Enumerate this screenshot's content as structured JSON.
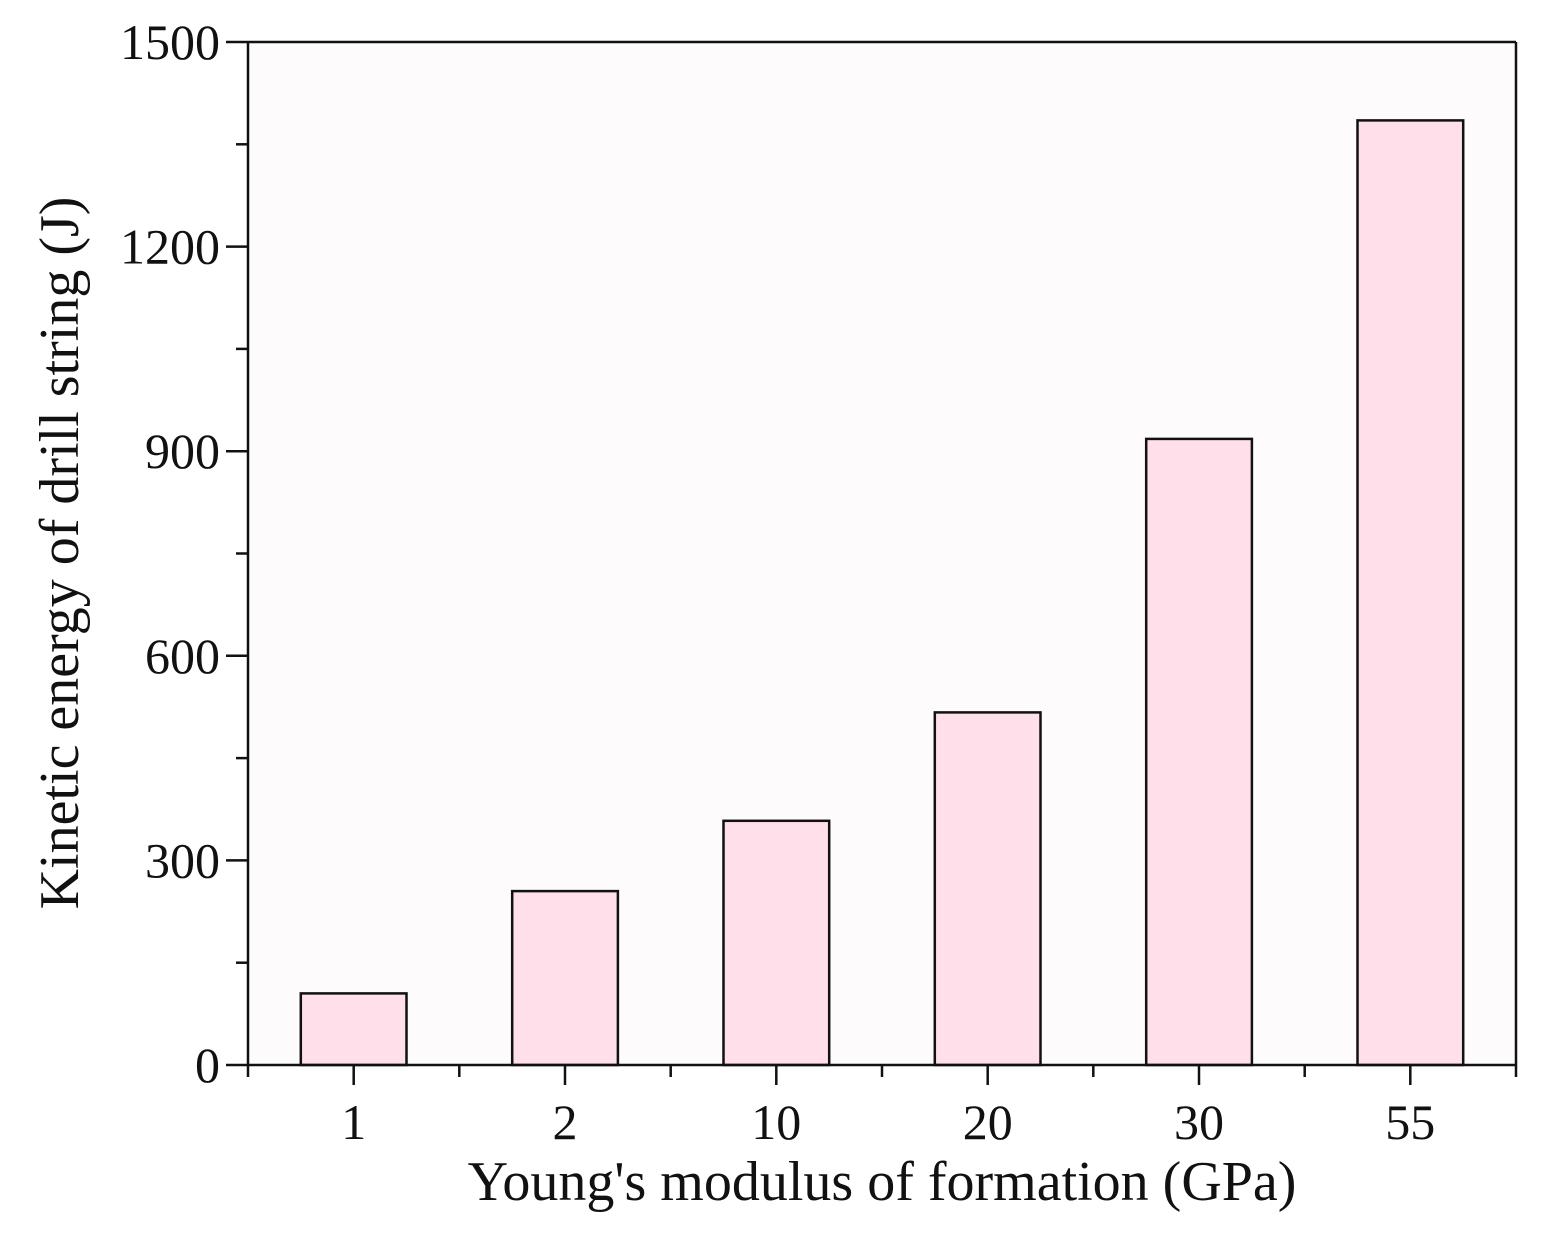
{
  "chart_data": {
    "type": "bar",
    "categories": [
      "1",
      "2",
      "10",
      "20",
      "30",
      "55"
    ],
    "values": [
      105,
      255,
      358,
      517,
      918,
      1385
    ],
    "xlabel": "Young's modulus of formation (GPa)",
    "ylabel": "Kinetic energy of drill string (J)",
    "ylim": [
      0,
      1500
    ],
    "yticks": [
      "0",
      "300",
      "600",
      "900",
      "1200",
      "1500"
    ],
    "ytick_values": [
      0,
      300,
      600,
      900,
      1200,
      1500
    ],
    "minor_ytick_values": [
      150,
      450,
      750,
      1050,
      1350
    ],
    "grid": false,
    "legend": "none",
    "bar_color": "#ffdfe9",
    "axis_color": "#111111"
  }
}
